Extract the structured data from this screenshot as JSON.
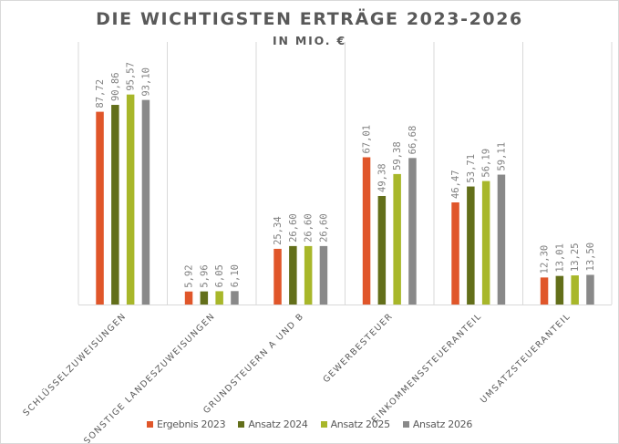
{
  "chart_data": {
    "type": "bar",
    "title": "DIE WICHTIGSTEN ERTRÄGE 2023-2026",
    "subtitle": "IN MIO. €",
    "xlabel": "",
    "ylabel": "",
    "ylim": [
      0,
      100
    ],
    "grid": "vertical-category-separators",
    "legend_position": "bottom",
    "categories": [
      "SCHLÜSSELZUWEISUNGEN",
      "SONSTIGE LANDESZUWEISUNGEN",
      "GRUNDSTEUERN A UND B",
      "GEWERBESTEUER",
      "EINKOMMENSSTEUERANTEIL",
      "UMSATZSTEUERANTEIL"
    ],
    "series": [
      {
        "name": "Ergebnis 2023",
        "color": "#E0562A",
        "values": [
          87.72,
          5.92,
          25.34,
          67.01,
          46.47,
          12.3
        ],
        "labels": [
          "87,72",
          "5,92",
          "25,34",
          "67,01",
          "46,47",
          "12,30"
        ]
      },
      {
        "name": "Ansatz 2024",
        "color": "#636F1A",
        "values": [
          90.86,
          5.96,
          26.6,
          49.38,
          53.71,
          13.01
        ],
        "labels": [
          "90,86",
          "5,96",
          "26,60",
          "49,38",
          "53,71",
          "13,01"
        ]
      },
      {
        "name": "Ansatz 2025",
        "color": "#A8B72A",
        "values": [
          95.57,
          6.05,
          26.6,
          59.38,
          56.19,
          13.25
        ],
        "labels": [
          "95,57",
          "6,05",
          "26,60",
          "59,38",
          "56,19",
          "13,25"
        ]
      },
      {
        "name": "Ansatz 2026",
        "color": "#898989",
        "values": [
          93.1,
          6.1,
          26.6,
          66.68,
          59.11,
          13.5
        ],
        "labels": [
          "93,10",
          "6,10",
          "26,60",
          "66,68",
          "59,11",
          "13,50"
        ]
      }
    ]
  }
}
